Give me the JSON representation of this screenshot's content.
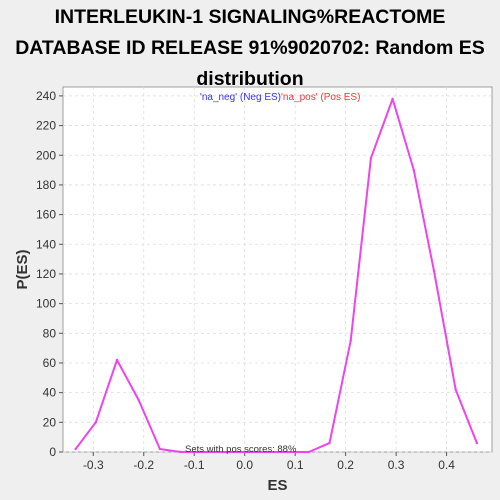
{
  "chart_data": {
    "type": "line",
    "title_lines": [
      "INTERLEUKIN-1 SIGNALING%REACTOME",
      "DATABASE ID RELEASE 91%9020702: Random ES",
      "distribution"
    ],
    "xlabel": "ES",
    "ylabel": "P(ES)",
    "xlim": [
      -0.36,
      0.49
    ],
    "ylim": [
      0,
      246
    ],
    "x_ticks": [
      -0.3,
      -0.2,
      -0.1,
      0.0,
      0.1,
      0.2,
      0.3,
      0.4
    ],
    "x_tick_labels": [
      "-0.3",
      "-0.2",
      "-0.1",
      "0.0",
      "0.1",
      "0.2",
      "0.3",
      "0.4"
    ],
    "y_ticks": [
      0,
      20,
      40,
      60,
      80,
      100,
      120,
      140,
      160,
      180,
      200,
      220,
      240
    ],
    "y_tick_labels": [
      "0",
      "20",
      "40",
      "60",
      "80",
      "100",
      "120",
      "140",
      "160",
      "180",
      "200",
      "220",
      "240"
    ],
    "grid": true,
    "legend_placement": "top-center",
    "legend": [
      {
        "label": "'na_neg' (Neg ES)",
        "color": "#3333ff"
      },
      {
        "label": "'na_pos' (Pos ES)",
        "color": "#ff3333"
      }
    ],
    "annotation": "Sets with pos scores: 88%",
    "series": [
      {
        "color": "#ee44ee",
        "x": [
          -0.335,
          -0.295,
          -0.253,
          -0.21,
          -0.168,
          -0.127,
          -0.085,
          -0.043,
          0.0,
          0.043,
          0.085,
          0.127,
          0.168,
          0.21,
          0.25,
          0.293,
          0.335,
          0.375,
          0.418,
          0.46
        ],
        "y": [
          2,
          20,
          62,
          35,
          2,
          0,
          0,
          0,
          0,
          0,
          0,
          0,
          6,
          75,
          198,
          238,
          190,
          122,
          42,
          6
        ]
      }
    ]
  }
}
